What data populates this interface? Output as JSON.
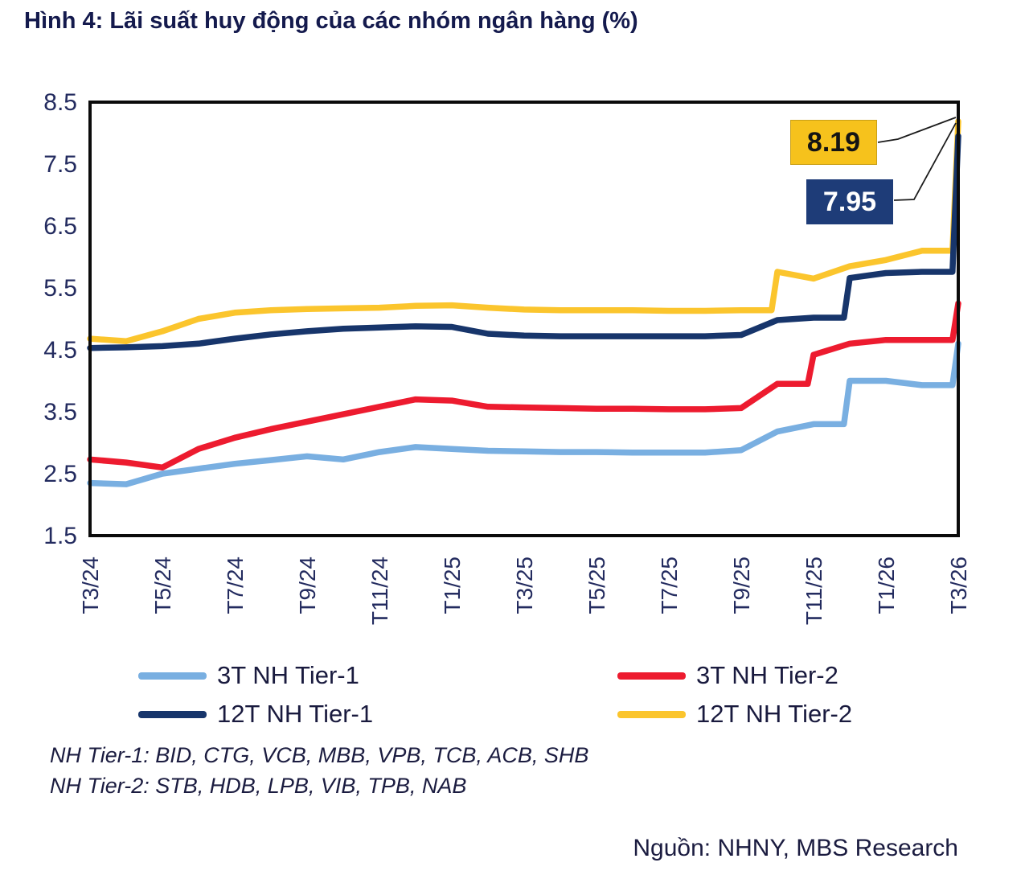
{
  "title": "Hình 4: Lãi suất huy động của các nhóm ngân hàng (%)",
  "source": "Nguồn: NHNY, MBS Research",
  "footnotes": [
    "NH Tier-1: BID, CTG, VCB, MBB, VPB, TCB, ACB, SHB",
    "NH Tier-2: STB, HDB, LPB, VIB, TPB, NAB"
  ],
  "chart_data": {
    "type": "line",
    "x": [
      "T3/24",
      "T4/24",
      "T5/24",
      "T6/24",
      "T7/24",
      "T8/24",
      "T9/24",
      "T10/24",
      "T11/24",
      "T12/24",
      "T1/25",
      "T2/25",
      "T3/25",
      "T4/25",
      "T5/25",
      "T6/25",
      "T7/25",
      "T8/25",
      "T9/25",
      "T10/25",
      "T11/25",
      "T12/25",
      "T1/26",
      "T2/26",
      "T3/26"
    ],
    "x_tick_labels": [
      "T3/24",
      "T5/24",
      "T7/24",
      "T9/24",
      "T11/24",
      "T1/25",
      "T3/25",
      "T5/25",
      "T7/25",
      "T9/25",
      "T11/25",
      "T1/26",
      "T3/26"
    ],
    "y_ticks": [
      1.5,
      2.5,
      3.5,
      4.5,
      5.5,
      6.5,
      7.5,
      8.5
    ],
    "ylim": [
      1.5,
      8.5
    ],
    "xlabel": "",
    "ylabel": "",
    "grid": false,
    "legend_position": "bottom",
    "series": [
      {
        "name": "3T NH Tier-1",
        "color": "#79afe1",
        "values": [
          2.35,
          2.33,
          2.5,
          2.58,
          2.66,
          2.72,
          2.78,
          2.73,
          2.85,
          2.93,
          2.9,
          2.87,
          2.86,
          2.85,
          2.85,
          2.84,
          2.84,
          2.84,
          2.88,
          3.18,
          3.3,
          4.0,
          4.0,
          3.93,
          4.6
        ]
      },
      {
        "name": "3T NH Tier-2",
        "color": "#ed1b2f",
        "values": [
          2.73,
          2.68,
          2.6,
          2.9,
          3.08,
          3.22,
          3.34,
          3.46,
          3.58,
          3.7,
          3.68,
          3.58,
          3.57,
          3.56,
          3.55,
          3.55,
          3.54,
          3.54,
          3.56,
          3.95,
          4.42,
          4.6,
          4.66,
          4.66,
          5.25
        ]
      },
      {
        "name": "12T NH Tier-1",
        "color": "#17356b",
        "values": [
          4.53,
          4.54,
          4.56,
          4.6,
          4.68,
          4.75,
          4.8,
          4.84,
          4.86,
          4.88,
          4.87,
          4.76,
          4.73,
          4.72,
          4.72,
          4.72,
          4.72,
          4.72,
          4.74,
          4.98,
          5.02,
          5.66,
          5.74,
          5.76,
          7.95
        ]
      },
      {
        "name": "12T NH Tier-2",
        "color": "#fbc52d",
        "values": [
          4.68,
          4.64,
          4.8,
          5.0,
          5.1,
          5.14,
          5.16,
          5.17,
          5.18,
          5.21,
          5.22,
          5.18,
          5.15,
          5.14,
          5.14,
          5.14,
          5.13,
          5.13,
          5.14,
          5.76,
          5.65,
          5.85,
          5.95,
          6.1,
          8.19
        ]
      }
    ],
    "annotations": [
      {
        "label": "8.19",
        "series": "12T NH Tier-2",
        "bg": "#f6c21c",
        "text_color": "#141414"
      },
      {
        "label": "7.95",
        "series": "12T NH Tier-1",
        "bg": "#1e3c78",
        "text_color": "#ffffff"
      }
    ]
  }
}
